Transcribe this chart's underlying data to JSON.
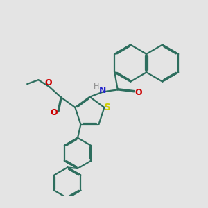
{
  "bg_color": "#e4e4e4",
  "bond_color": "#2d6e5e",
  "line_width": 1.6,
  "atom_colors": {
    "S": "#cccc00",
    "N": "#2222cc",
    "O": "#cc0000",
    "H": "#888888"
  },
  "font_size": 9.0
}
